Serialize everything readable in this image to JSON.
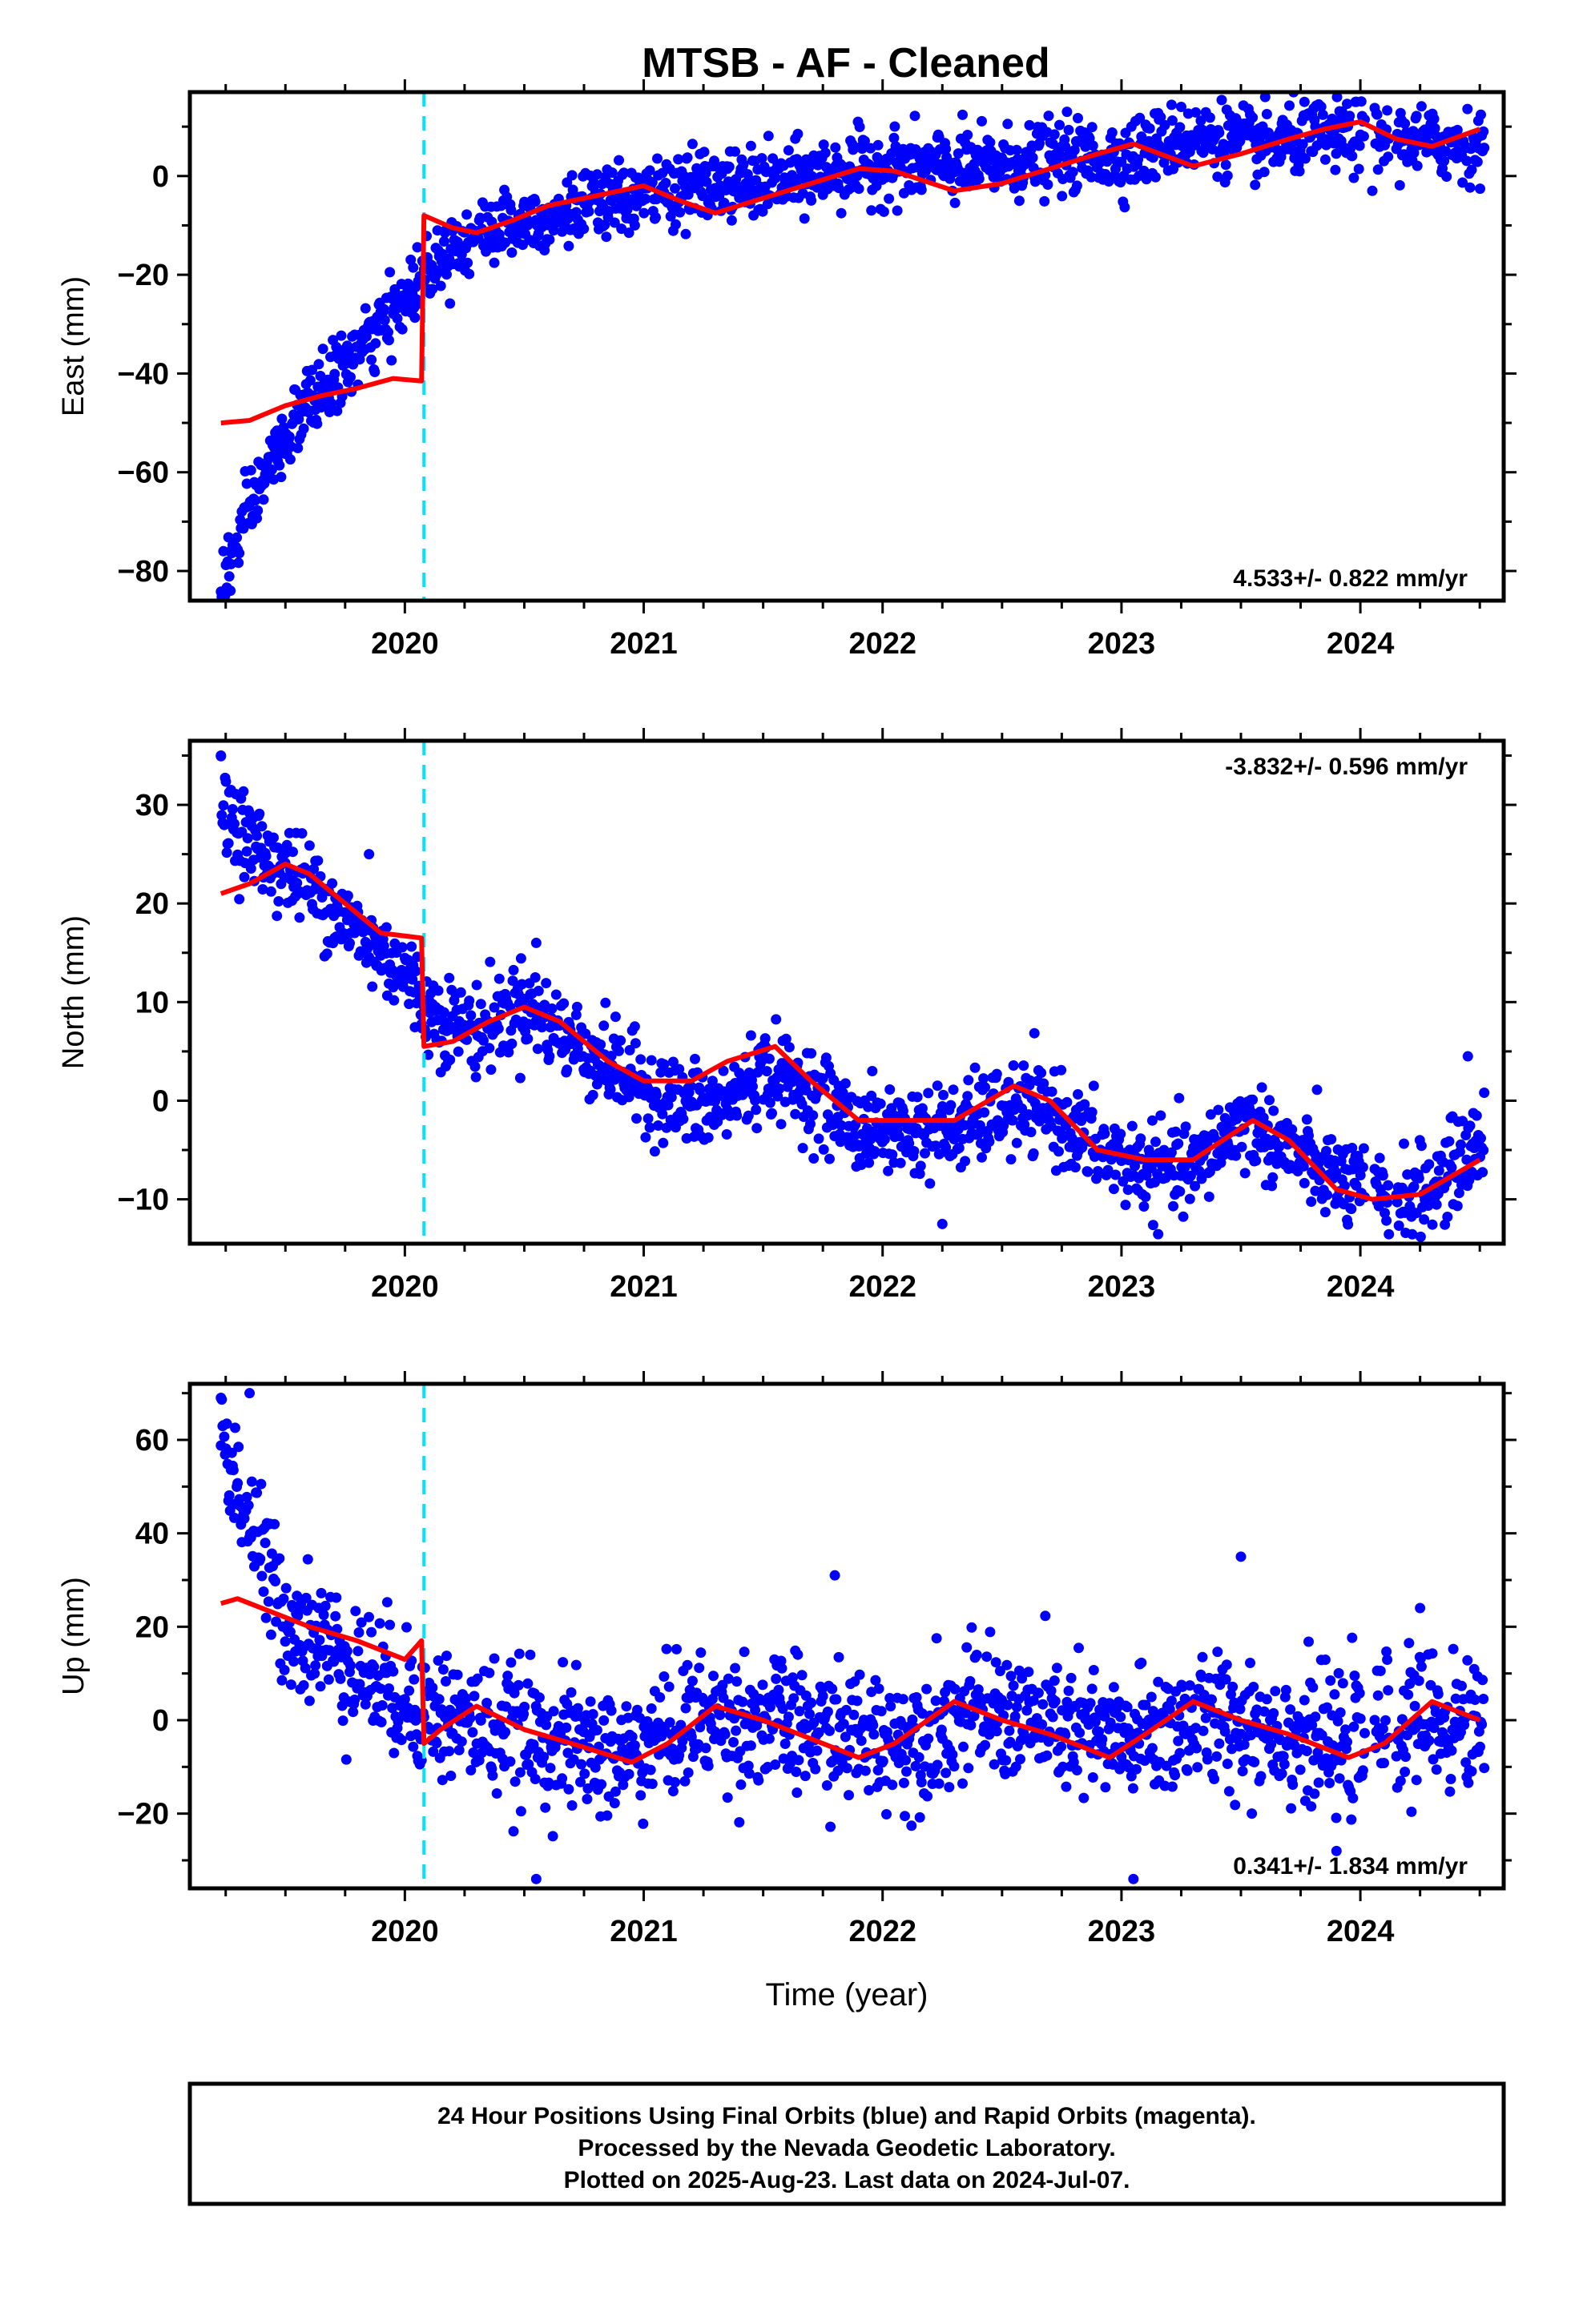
{
  "title": "MTSB  - AF - Cleaned",
  "colors": {
    "data": "#0000ff",
    "model": "#ff0000",
    "offset": "#00e5ff",
    "axis": "#000000"
  },
  "chart_data": [
    {
      "type": "scatter",
      "ylabel": "East (mm)",
      "xlabel": "",
      "xlim": [
        2019.1,
        2024.6
      ],
      "ylim": [
        -86,
        17
      ],
      "xticks": [
        2020,
        2021,
        2022,
        2023,
        2024
      ],
      "yticks": [
        -80,
        -60,
        -40,
        -20,
        0
      ],
      "offset_epoch": 2020.08,
      "rate_label": "4.533+/- 0.822 mm/yr",
      "rate_position": "bottom-right",
      "model_curve": {
        "x": [
          2019.23,
          2019.35,
          2019.5,
          2019.65,
          2019.8,
          2019.95,
          2020.07,
          2020.08,
          2020.2,
          2020.3,
          2020.45,
          2020.6,
          2020.8,
          2021.0,
          2021.15,
          2021.3,
          2021.5,
          2021.7,
          2021.9,
          2022.05,
          2022.3,
          2022.5,
          2022.7,
          2022.9,
          2023.05,
          2023.3,
          2023.5,
          2023.7,
          2023.85,
          2024.0,
          2024.15,
          2024.3,
          2024.5
        ],
        "y": [
          -50,
          -49.5,
          -46.5,
          -44.5,
          -43,
          -41,
          -41.5,
          -8,
          -10.5,
          -11.5,
          -9,
          -6,
          -4,
          -2,
          -5,
          -7.5,
          -4.5,
          -1.5,
          1.5,
          1,
          -3,
          -1.5,
          1.5,
          4.5,
          6.5,
          2,
          4.5,
          7.5,
          9.5,
          11,
          7.5,
          6,
          9.5
        ]
      },
      "scatter_trend": {
        "x": [
          2019.23,
          2019.3,
          2019.4,
          2019.5,
          2019.6,
          2019.7,
          2019.8,
          2019.9,
          2020.0,
          2020.1,
          2020.2,
          2020.4,
          2020.6,
          2020.8,
          2021.0,
          2021.2,
          2021.4,
          2021.6,
          2021.8,
          2022.0,
          2022.2,
          2022.4,
          2022.6,
          2022.8,
          2023.0,
          2023.2,
          2023.4,
          2023.6,
          2023.8,
          2024.0,
          2024.2,
          2024.5
        ],
        "y": [
          -83,
          -74,
          -62,
          -53,
          -46,
          -41,
          -36,
          -31,
          -25,
          -18,
          -14,
          -10,
          -8,
          -6,
          -4,
          -2,
          -2,
          -1,
          1,
          2,
          2,
          2,
          3,
          4,
          4,
          7,
          8,
          6,
          8,
          8,
          7,
          6
        ]
      },
      "scatter_scatter_mm": 3.5,
      "outliers": [
        {
          "x": 2019.27,
          "y": -84
        },
        {
          "x": 2023.25,
          "y": 14
        },
        {
          "x": 2024.05,
          "y": -3
        }
      ]
    },
    {
      "type": "scatter",
      "ylabel": "North (mm)",
      "xlabel": "",
      "xlim": [
        2019.1,
        2024.6
      ],
      "ylim": [
        -14.5,
        36.5
      ],
      "xticks": [
        2020,
        2021,
        2022,
        2023,
        2024
      ],
      "yticks": [
        -10,
        0,
        10,
        20,
        30
      ],
      "offset_epoch": 2020.08,
      "rate_label": "-3.832+/- 0.596 mm/yr",
      "rate_position": "top-right",
      "model_curve": {
        "x": [
          2019.23,
          2019.35,
          2019.5,
          2019.6,
          2019.75,
          2019.9,
          2020.07,
          2020.08,
          2020.2,
          2020.35,
          2020.5,
          2020.65,
          2020.85,
          2021.0,
          2021.2,
          2021.35,
          2021.55,
          2021.7,
          2021.9,
          2022.1,
          2022.3,
          2022.55,
          2022.7,
          2022.9,
          2023.1,
          2023.3,
          2023.55,
          2023.7,
          2023.9,
          2024.05,
          2024.25,
          2024.5
        ],
        "y": [
          21,
          22,
          24,
          23,
          20,
          17,
          16.5,
          5.5,
          6,
          8,
          9.5,
          8,
          4,
          2,
          2,
          4,
          5.5,
          2,
          -2,
          -2,
          -2,
          1.5,
          0,
          -5,
          -6,
          -6,
          -2,
          -4,
          -9,
          -10,
          -9.5,
          -6
        ]
      },
      "scatter_trend": {
        "x": [
          2019.23,
          2019.4,
          2019.6,
          2019.8,
          2020.0,
          2020.1,
          2020.3,
          2020.5,
          2020.7,
          2020.9,
          2021.1,
          2021.3,
          2021.5,
          2021.7,
          2021.9,
          2022.1,
          2022.3,
          2022.5,
          2022.7,
          2022.9,
          2023.1,
          2023.3,
          2023.5,
          2023.7,
          2023.9,
          2024.1,
          2024.3,
          2024.5
        ],
        "y": [
          30,
          25,
          22,
          17,
          13,
          9,
          7,
          10,
          6,
          3,
          0,
          -1,
          3,
          1,
          -3,
          -3,
          -3,
          -1,
          -1,
          -5,
          -7,
          -7,
          -2,
          -5,
          -8,
          -10,
          -9,
          -4
        ]
      },
      "scatter_scatter_mm": 2.2,
      "outliers": [
        {
          "x": 2019.23,
          "y": 35
        },
        {
          "x": 2019.85,
          "y": 25
        },
        {
          "x": 2020.55,
          "y": 16
        },
        {
          "x": 2022.25,
          "y": -12.5
        },
        {
          "x": 2024.45,
          "y": 4.5
        }
      ]
    },
    {
      "type": "scatter",
      "ylabel": "Up (mm)",
      "xlabel": "Time (year)",
      "xlim": [
        2019.1,
        2024.6
      ],
      "ylim": [
        -36,
        72
      ],
      "xticks": [
        2020,
        2021,
        2022,
        2023,
        2024
      ],
      "yticks": [
        -20,
        0,
        20,
        40,
        60
      ],
      "offset_epoch": 2020.08,
      "rate_label": "0.341+/- 1.834 mm/yr",
      "rate_position": "bottom-right",
      "model_curve": {
        "x": [
          2019.23,
          2019.3,
          2019.45,
          2019.6,
          2019.8,
          2020.0,
          2020.07,
          2020.08,
          2020.15,
          2020.3,
          2020.5,
          2020.7,
          2020.95,
          2021.1,
          2021.3,
          2021.5,
          2021.7,
          2021.9,
          2022.05,
          2022.3,
          2022.5,
          2022.7,
          2022.95,
          2023.1,
          2023.3,
          2023.5,
          2023.7,
          2023.95,
          2024.1,
          2024.3,
          2024.5
        ],
        "y": [
          25,
          26,
          23,
          20,
          17,
          13,
          17,
          -5,
          -2,
          3,
          -2,
          -5,
          -9,
          -5,
          3,
          0,
          -4,
          -8,
          -5,
          4,
          0,
          -3,
          -8,
          -3,
          4,
          0,
          -3,
          -8,
          -5,
          4,
          0
        ]
      },
      "scatter_trend": {
        "x": [
          2019.23,
          2019.3,
          2019.4,
          2019.5,
          2019.7,
          2019.9,
          2020.1,
          2020.3,
          2020.6,
          2020.9,
          2021.2,
          2021.5,
          2021.8,
          2022.1,
          2022.4,
          2022.7,
          2023.0,
          2023.3,
          2023.6,
          2023.9,
          2024.2,
          2024.5
        ],
        "y": [
          62,
          50,
          35,
          22,
          15,
          8,
          2,
          -1,
          -4,
          -8,
          0,
          0,
          -3,
          -4,
          2,
          -1,
          -5,
          0,
          -1,
          -6,
          0,
          -1
        ],
        "spread_mm": 7
      },
      "scatter_scatter_mm": 7,
      "outliers": [
        {
          "x": 2019.23,
          "y": 69
        },
        {
          "x": 2019.35,
          "y": 70
        },
        {
          "x": 2020.55,
          "y": -34
        },
        {
          "x": 2021.8,
          "y": 31
        },
        {
          "x": 2023.05,
          "y": -34
        },
        {
          "x": 2023.5,
          "y": 35
        },
        {
          "x": 2023.9,
          "y": -28
        },
        {
          "x": 2024.25,
          "y": 24
        }
      ]
    }
  ],
  "footer": {
    "line1": "24 Hour Positions Using Final Orbits (blue) and Rapid Orbits (magenta).",
    "line2": "Processed by the Nevada Geodetic Laboratory.",
    "line3": "Plotted on 2025-Aug-23. Last data on 2024-Jul-07."
  }
}
